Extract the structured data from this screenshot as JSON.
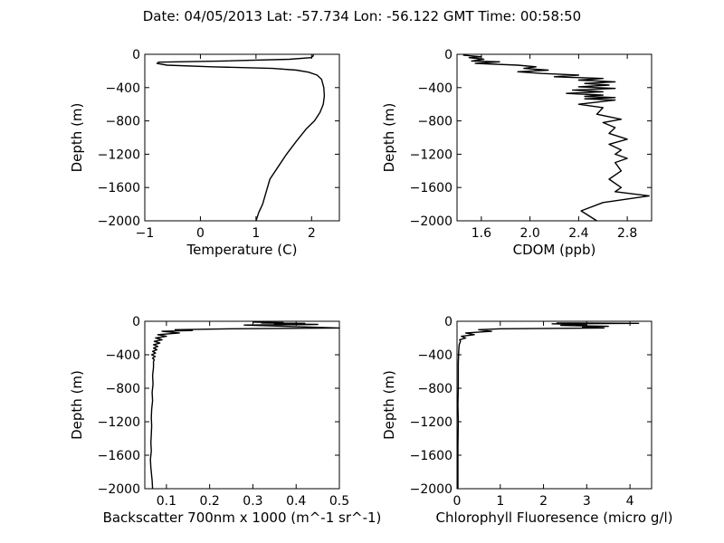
{
  "title": "Date: 04/05/2013  Lat:  -57.734 Lon:  -56.122  GMT Time: 00:58:50",
  "chart_data": [
    {
      "type": "line",
      "xlabel": "Temperature (C)",
      "ylabel": "Depth (m)",
      "xlim": [
        -1,
        2.5
      ],
      "ylim": [
        -2000,
        0
      ],
      "xticks": [
        "−1",
        "0",
        "1",
        "2"
      ],
      "yticks": [
        "0",
        "−400",
        "−800",
        "−1200",
        "−1600",
        "−2000"
      ],
      "grid": false,
      "series": [
        {
          "x": [
            2.03,
            2.03,
            1.99,
            1.6,
            0.4,
            -0.75,
            -0.78,
            -0.6,
            0.2,
            1.3,
            1.73,
            1.95,
            2.1,
            2.18,
            2.22,
            2.23,
            2.21,
            2.15,
            2.05,
            1.9,
            1.72,
            1.55,
            1.4,
            1.25,
            1.12,
            1.05,
            1.0
          ],
          "y": [
            0,
            -20,
            -40,
            -60,
            -80,
            -95,
            -110,
            -130,
            -150,
            -170,
            -190,
            -215,
            -250,
            -300,
            -400,
            -500,
            -600,
            -700,
            -800,
            -900,
            -1050,
            -1200,
            -1350,
            -1500,
            -1800,
            -1900,
            -2000
          ]
        }
      ]
    },
    {
      "type": "line",
      "xlabel": "CDOM (ppb)",
      "ylabel": "Depth (m)",
      "xlim": [
        1.4,
        3.0
      ],
      "ylim": [
        -2000,
        0
      ],
      "xticks": [
        "1.6",
        "2.0",
        "2.4",
        "2.8"
      ],
      "yticks": [
        "0",
        "−400",
        "−800",
        "−1200",
        "−1600",
        "−2000"
      ],
      "grid": false,
      "series": [
        {
          "x": [
            1.45,
            1.6,
            1.5,
            1.62,
            1.52,
            1.75,
            1.55,
            1.9,
            2.05,
            1.95,
            2.15,
            1.9,
            2.1,
            2.4,
            2.2,
            2.6,
            2.4,
            2.7,
            2.45,
            2.65,
            2.4,
            2.7,
            2.35,
            2.6,
            2.3,
            2.6,
            2.45,
            2.7,
            2.45,
            2.7,
            2.4,
            2.6,
            2.55,
            2.75,
            2.6,
            2.7,
            2.65,
            2.8,
            2.65,
            2.75,
            2.7,
            2.8,
            2.7,
            2.75,
            2.65,
            2.75,
            2.7,
            2.98,
            2.6,
            2.42,
            2.55
          ],
          "y": [
            -10,
            -30,
            -40,
            -60,
            -80,
            -90,
            -110,
            -130,
            -150,
            -170,
            -190,
            -210,
            -230,
            -250,
            -270,
            -290,
            -310,
            -330,
            -350,
            -370,
            -390,
            -410,
            -430,
            -450,
            -470,
            -490,
            -505,
            -520,
            -535,
            -550,
            -600,
            -640,
            -720,
            -780,
            -820,
            -880,
            -950,
            -1020,
            -1080,
            -1150,
            -1200,
            -1250,
            -1300,
            -1400,
            -1500,
            -1600,
            -1650,
            -1700,
            -1780,
            -1880,
            -2000
          ]
        }
      ]
    },
    {
      "type": "line",
      "xlabel": "Backscatter 700nm x 1000 (m^-1 sr^-1)",
      "ylabel": "Depth (m)",
      "xlim": [
        0.05,
        0.5
      ],
      "ylim": [
        -2000,
        0
      ],
      "xticks": [
        "0.1",
        "0.2",
        "0.3",
        "0.4",
        "0.5"
      ],
      "yticks": [
        "0",
        "−400",
        "−800",
        "−1200",
        "−1600",
        "−2000"
      ],
      "grid": false,
      "series": [
        {
          "x": [
            0.3,
            0.37,
            0.32,
            0.42,
            0.35,
            0.45,
            0.28,
            0.5,
            0.25,
            0.12,
            0.16,
            0.09,
            0.13,
            0.08,
            0.1,
            0.075,
            0.09,
            0.072,
            0.085,
            0.07,
            0.08,
            0.07,
            0.078,
            0.068,
            0.075,
            0.066,
            0.074,
            0.068,
            0.072,
            0.07,
            0.07,
            0.068,
            0.069,
            0.067,
            0.068,
            0.066,
            0.065,
            0.066,
            0.065,
            0.064,
            0.065,
            0.063,
            0.064,
            0.065,
            0.066,
            0.067,
            0.068
          ],
          "y": [
            -10,
            -15,
            -20,
            -25,
            -30,
            -38,
            -45,
            -80,
            -90,
            -100,
            -110,
            -120,
            -140,
            -160,
            -180,
            -200,
            -220,
            -240,
            -260,
            -280,
            -300,
            -320,
            -340,
            -360,
            -380,
            -400,
            -420,
            -440,
            -460,
            -480,
            -550,
            -650,
            -750,
            -850,
            -950,
            -1050,
            -1150,
            -1250,
            -1350,
            -1450,
            -1550,
            -1650,
            -1750,
            -1800,
            -1850,
            -1900,
            -2000
          ]
        }
      ]
    },
    {
      "type": "line",
      "xlabel": "Chlorophyll Fluoresence (micro g/l)",
      "ylabel": "Depth (m)",
      "xlim": [
        0,
        4.5
      ],
      "ylim": [
        -2000,
        0
      ],
      "xticks": [
        "0",
        "1",
        "2",
        "3",
        "4"
      ],
      "yticks": [
        "0",
        "−400",
        "−800",
        "−1200",
        "−1600",
        "−2000"
      ],
      "grid": false,
      "series": [
        {
          "x": [
            2.3,
            4.2,
            2.2,
            3.0,
            2.4,
            3.5,
            2.9,
            3.4,
            1.0,
            0.5,
            0.8,
            0.2,
            0.4,
            0.1,
            0.2,
            0.06,
            0.08,
            0.05,
            0.04,
            0.03,
            0.03,
            0.02,
            0.03,
            0.02,
            0.02,
            0.02
          ],
          "y": [
            -20,
            -25,
            -30,
            -40,
            -50,
            -60,
            -70,
            -80,
            -90,
            -100,
            -120,
            -140,
            -160,
            -180,
            -200,
            -220,
            -240,
            -280,
            -350,
            -500,
            -800,
            -1000,
            -1200,
            -1500,
            -1800,
            -2000
          ]
        }
      ]
    }
  ]
}
